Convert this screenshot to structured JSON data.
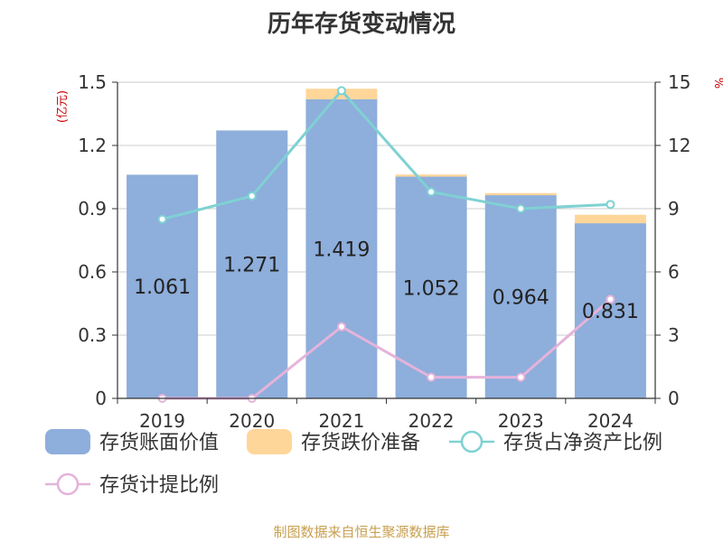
{
  "title": "历年存货变动情况",
  "source": "制图数据来自恒生聚源数据库",
  "chart_data": {
    "type": "bar",
    "categories": [
      "2019",
      "2020",
      "2021",
      "2022",
      "2023",
      "2024"
    ],
    "series": [
      {
        "name": "存货账面价值",
        "type": "bar",
        "axis": "left",
        "color": "#8eaedb",
        "values": [
          1.061,
          1.271,
          1.419,
          1.052,
          0.964,
          0.831
        ]
      },
      {
        "name": "存货跌价准备",
        "type": "bar",
        "stacked": true,
        "axis": "left",
        "color": "#ffd699",
        "values": [
          0.0,
          0.0,
          0.05,
          0.01,
          0.01,
          0.04
        ]
      },
      {
        "name": "存货占净资产比例",
        "type": "line",
        "axis": "right",
        "color": "#7fd1d3",
        "values": [
          8.5,
          9.6,
          14.6,
          9.8,
          9.0,
          9.2
        ]
      },
      {
        "name": "存货计提比例",
        "type": "line",
        "axis": "right",
        "color": "#e5b3da",
        "values": [
          0.0,
          0.0,
          3.4,
          1.0,
          1.0,
          4.7
        ]
      }
    ],
    "data_labels": [
      "1.061",
      "1.271",
      "1.419",
      "1.052",
      "0.964",
      "0.831"
    ],
    "left_axis": {
      "label": "(亿元)",
      "ylim": [
        0,
        1.5
      ],
      "ticks": [
        "0",
        "0.3",
        "0.6",
        "0.9",
        "1.2",
        "1.5"
      ]
    },
    "right_axis": {
      "label": "%",
      "ylim": [
        0,
        15
      ],
      "ticks": [
        "0",
        "3",
        "6",
        "9",
        "12",
        "15"
      ]
    },
    "grid": true,
    "legend_position": "bottom"
  }
}
